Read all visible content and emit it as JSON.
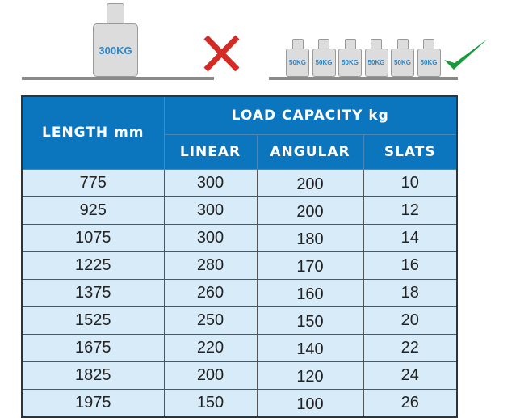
{
  "illustration": {
    "heavy_weight_label": "300KG",
    "light_weight_labels": [
      "50KG",
      "50KG",
      "50KG",
      "50KG",
      "50KG",
      "50KG"
    ],
    "wrong_icon": "red-x-icon",
    "right_icon": "green-check-icon",
    "colors": {
      "wrong": "#d62a24",
      "right": "#1a9a3a",
      "weight_text": "#2b86c8"
    }
  },
  "table": {
    "header_length": "LENGTH mm",
    "header_group": "LOAD CAPACITY kg",
    "sub_headers": [
      "LINEAR",
      "ANGULAR",
      "SLATS"
    ],
    "rows": [
      [
        "775",
        "300",
        "200",
        "10"
      ],
      [
        "925",
        "300",
        "200",
        "12"
      ],
      [
        "1075",
        "300",
        "180",
        "14"
      ],
      [
        "1225",
        "280",
        "170",
        "16"
      ],
      [
        "1375",
        "260",
        "160",
        "18"
      ],
      [
        "1525",
        "250",
        "150",
        "20"
      ],
      [
        "1675",
        "220",
        "140",
        "22"
      ],
      [
        "1825",
        "200",
        "120",
        "24"
      ],
      [
        "1975",
        "150",
        "100",
        "26"
      ]
    ],
    "colors": {
      "header_bg": "#0b75bd",
      "cell_bg": "#d8ebf9"
    }
  }
}
